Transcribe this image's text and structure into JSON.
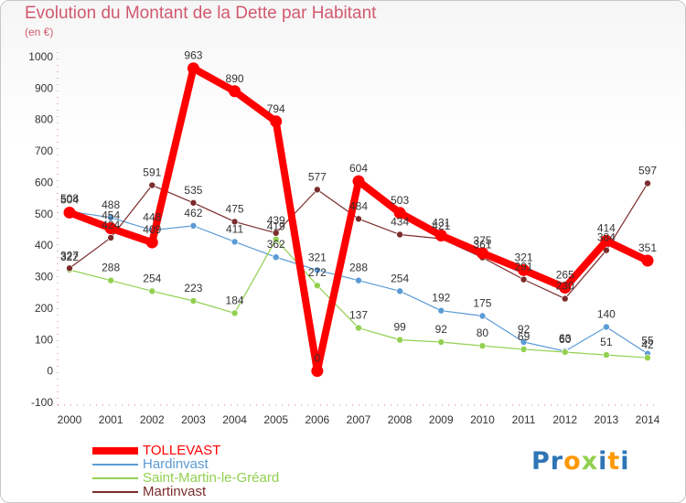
{
  "chart_data": {
    "type": "line",
    "title": "Evolution du Montant de la Dette par Habitant",
    "subtitle": "(en €)",
    "x": [
      "2000",
      "2001",
      "2002",
      "2003",
      "2004",
      "2005",
      "2006",
      "2007",
      "2008",
      "2009",
      "2010",
      "2011",
      "2012",
      "2013",
      "2014"
    ],
    "ylim": [
      -100,
      1000
    ],
    "yticks": [
      -100,
      0,
      100,
      200,
      300,
      400,
      500,
      600,
      700,
      800,
      900,
      1000
    ],
    "grid": false,
    "legend_position": "bottom-left",
    "series": [
      {
        "name": "TOLLEVAST",
        "color": "#ff0000",
        "values": [
          504,
          454,
          409,
          963,
          890,
          794,
          0,
          604,
          503,
          431,
          375,
          321,
          265,
          414,
          351
        ],
        "labels": [
          "504",
          "454",
          "409",
          "963",
          "890",
          "794",
          "0",
          "604",
          "503",
          "431",
          "375",
          "321",
          "265",
          "414",
          "351"
        ]
      },
      {
        "name": "Hardinvast",
        "color": "#5b9bd5",
        "values": [
          508,
          488,
          448,
          462,
          411,
          362,
          321,
          288,
          254,
          192,
          175,
          92,
          63,
          140,
          55
        ],
        "labels": [
          "508",
          "488",
          "448",
          "462",
          "411",
          "362",
          "321",
          "288",
          "254",
          "192",
          "175",
          "92",
          "63",
          "140",
          "55"
        ]
      },
      {
        "name": "Saint-Martin-le-Gréard",
        "color": "#92d050",
        "values": [
          322,
          288,
          254,
          223,
          184,
          419,
          272,
          137,
          99,
          92,
          80,
          69,
          60,
          51,
          42
        ],
        "labels": [
          "322",
          "288",
          "254",
          "223",
          "184",
          "419",
          "272",
          "137",
          "99",
          "92",
          "80",
          "69",
          "60",
          "51",
          "42"
        ]
      },
      {
        "name": "Martinvast",
        "color": "#7b2c2c",
        "values": [
          327,
          424,
          591,
          535,
          475,
          439,
          577,
          484,
          434,
          421,
          361,
          291,
          230,
          384,
          597
        ],
        "labels": [
          "327",
          "424",
          "591",
          "535",
          "475",
          "439",
          "577",
          "484",
          "434",
          "421",
          "361",
          "291",
          "230",
          "384",
          "597"
        ]
      }
    ]
  },
  "brand": {
    "letters": [
      "P",
      "r",
      "o",
      "x",
      "i",
      "t",
      "i"
    ],
    "colors": [
      "#2e75b6",
      "#2e75b6",
      "#ff9900",
      "#92d050",
      "#2e75b6",
      "#ff9900",
      "#2e75b6"
    ]
  }
}
